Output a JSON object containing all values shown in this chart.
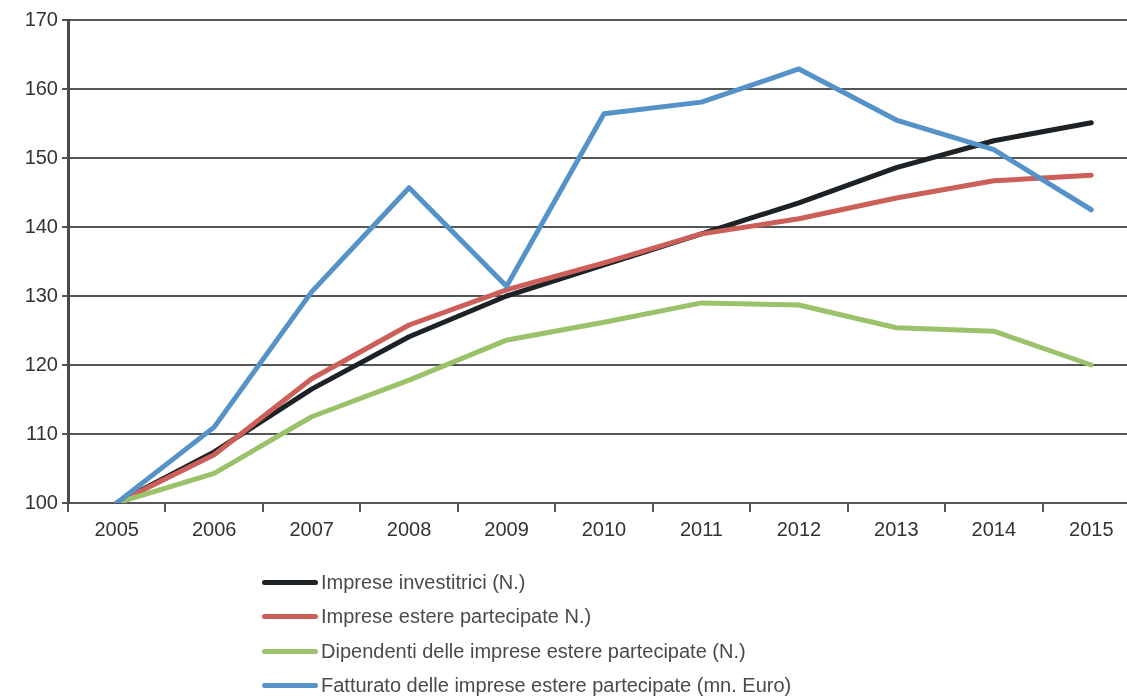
{
  "chart_data": {
    "type": "line",
    "categories": [
      "2005",
      "2006",
      "2007",
      "2008",
      "2009",
      "2010",
      "2011",
      "2012",
      "2013",
      "2014",
      "2015"
    ],
    "ylim": [
      100,
      170
    ],
    "yticks": [
      100,
      110,
      120,
      130,
      140,
      150,
      160,
      170
    ],
    "grid": "y",
    "legend": "bottom",
    "marker": "none",
    "line_style": "solid",
    "series": [
      {
        "name": "Imprese investitrici (N.)",
        "color": "#1d2226",
        "values": [
          100,
          107.4,
          116.5,
          124.1,
          130,
          134.5,
          139,
          143.5,
          148.6,
          152.5,
          155.1
        ]
      },
      {
        "name": "Imprese estere partecipate N.)",
        "color": "#cc5f58",
        "values": [
          100,
          107,
          118,
          125.8,
          130.9,
          134.8,
          139,
          141.2,
          144.2,
          146.7,
          147.5
        ]
      },
      {
        "name": "Dipendenti delle imprese estere partecipate (N.)",
        "color": "#9bc26a",
        "values": [
          100,
          104.3,
          112.5,
          117.8,
          123.6,
          126.2,
          129,
          128.7,
          125.4,
          124.9,
          120
        ]
      },
      {
        "name": "Fatturato delle imprese estere partecipate (mn. Euro)",
        "color": "#5592c8",
        "values": [
          100,
          111,
          130.6,
          145.7,
          131.4,
          156.4,
          158.1,
          162.9,
          155.5,
          151.2,
          142.5
        ]
      }
    ]
  }
}
